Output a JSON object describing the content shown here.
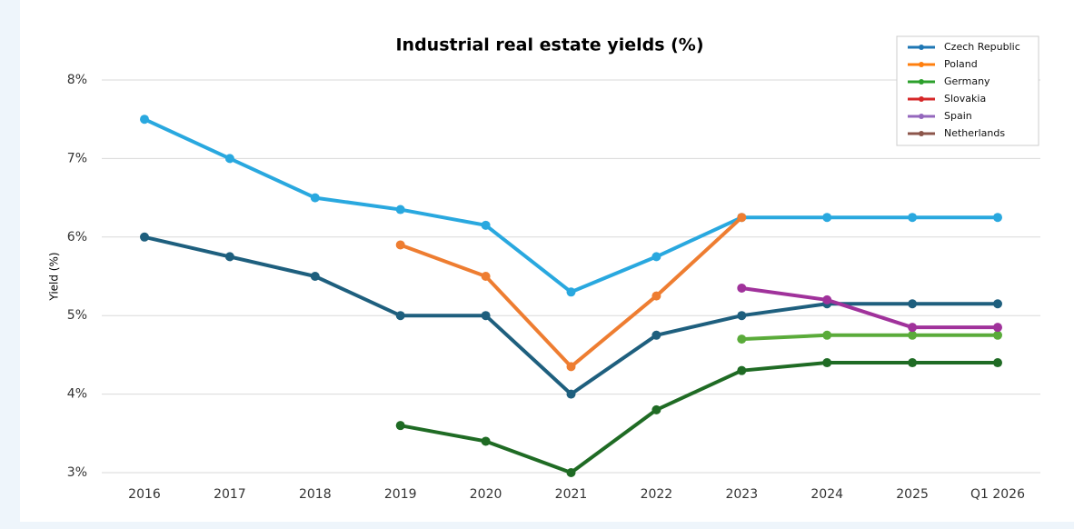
{
  "chart_data": {
    "type": "line",
    "title": "Industrial real estate yields (%)",
    "y_label": "Yield (%)",
    "categories": [
      "2016",
      "2017",
      "2018",
      "2019",
      "2020",
      "2021",
      "2022",
      "2023",
      "2024",
      "2025",
      "Q1 2026"
    ],
    "series": [
      {
        "name": "Czech Republic",
        "color": "#29a8df",
        "legend_color": "#1f77b4",
        "values": [
          7.5,
          7.0,
          6.5,
          6.35,
          6.15,
          5.3,
          5.75,
          6.25,
          6.25,
          6.25,
          6.25
        ]
      },
      {
        "name": "Poland",
        "color": "#ee7d31",
        "legend_color": "#ff7f0e",
        "values": [
          null,
          null,
          null,
          5.9,
          5.5,
          4.35,
          5.25,
          6.25,
          null,
          null,
          null
        ]
      },
      {
        "name": "Germany",
        "color": "#5aab3a",
        "legend_color": "#2ca02c",
        "values": [
          null,
          null,
          null,
          null,
          null,
          null,
          null,
          4.7,
          4.75,
          4.75,
          4.75
        ]
      },
      {
        "name": "Slovakia",
        "color": "#1e5f7e",
        "legend_color": "#d62728",
        "values": [
          6.0,
          5.75,
          5.5,
          5.0,
          5.0,
          4.0,
          4.75,
          5.0,
          5.15,
          5.15,
          5.15
        ]
      },
      {
        "name": "Spain",
        "color": "#a0329b",
        "legend_color": "#9467bd",
        "values": [
          null,
          null,
          null,
          null,
          null,
          null,
          null,
          5.35,
          5.2,
          4.85,
          4.85
        ]
      },
      {
        "name": "Netherlands",
        "color": "#1f6b24",
        "legend_color": "#8c564b",
        "values": [
          null,
          null,
          null,
          3.6,
          3.4,
          3.0,
          3.8,
          4.3,
          4.4,
          4.4,
          4.4
        ]
      }
    ],
    "ylim": [
      3,
      8
    ],
    "yticks": [
      {
        "value": 3,
        "label": "3%"
      },
      {
        "value": 4,
        "label": "4%"
      },
      {
        "value": 5,
        "label": "5%"
      },
      {
        "value": 6,
        "label": "6%"
      },
      {
        "value": 7,
        "label": "7%"
      },
      {
        "value": 8,
        "label": "8%"
      }
    ],
    "grid": true,
    "legend": "upper right"
  }
}
